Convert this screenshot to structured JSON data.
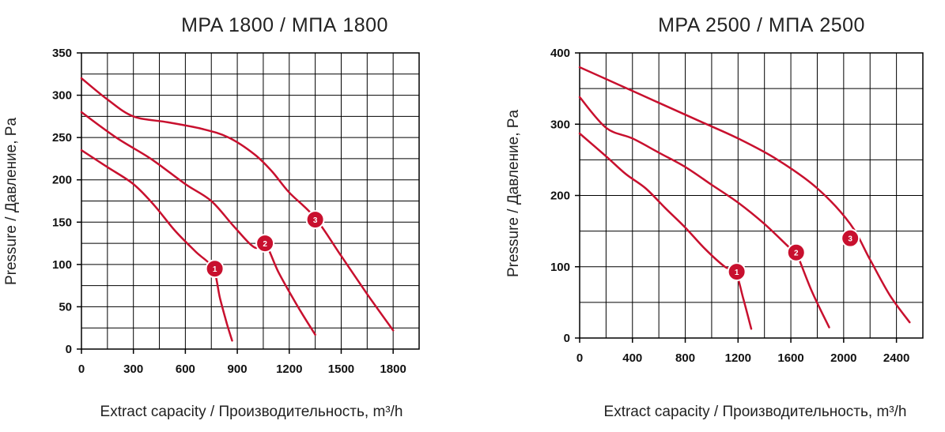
{
  "colors": {
    "curve": "#c8102e",
    "marker": "#c8102e",
    "grid": "#000000"
  },
  "chart_data": [
    {
      "type": "line",
      "title": "MPA 1800 / МПА 1800",
      "xlabel": "Extract capacity / Производительность, m³/h",
      "ylabel": "Pressure / Давление, Pa",
      "xlim": [
        0,
        1950
      ],
      "ylim": [
        0,
        350
      ],
      "x_ticks": [
        0,
        300,
        600,
        900,
        1200,
        1500,
        1800
      ],
      "y_ticks": [
        0,
        50,
        100,
        150,
        200,
        250,
        300,
        350
      ],
      "x_tick_labels": [
        "0",
        "300",
        "600",
        "900",
        "1200",
        "1500",
        "1800"
      ],
      "y_tick_labels": [
        "0",
        "50",
        "100",
        "150",
        "200",
        "250",
        "300",
        "350"
      ],
      "x_grid_step": 150,
      "y_grid_step": 25,
      "series": [
        {
          "name": "1",
          "points": [
            [
              0,
              235
            ],
            [
              150,
              215
            ],
            [
              300,
              195
            ],
            [
              420,
              170
            ],
            [
              540,
              140
            ],
            [
              660,
              115
            ],
            [
              760,
              95
            ],
            [
              800,
              60
            ],
            [
              840,
              30
            ],
            [
              870,
              10
            ]
          ],
          "marker": [
            770,
            95
          ]
        },
        {
          "name": "2",
          "points": [
            [
              0,
              280
            ],
            [
              200,
              250
            ],
            [
              400,
              225
            ],
            [
              600,
              195
            ],
            [
              750,
              175
            ],
            [
              880,
              145
            ],
            [
              1000,
              120
            ],
            [
              1060,
              125
            ],
            [
              1140,
              90
            ],
            [
              1250,
              50
            ],
            [
              1350,
              17
            ]
          ],
          "marker": [
            1060,
            125
          ]
        },
        {
          "name": "3",
          "points": [
            [
              0,
              320
            ],
            [
              150,
              295
            ],
            [
              300,
              275
            ],
            [
              500,
              268
            ],
            [
              700,
              260
            ],
            [
              850,
              250
            ],
            [
              1000,
              230
            ],
            [
              1100,
              210
            ],
            [
              1200,
              185
            ],
            [
              1350,
              155
            ],
            [
              1500,
              110
            ],
            [
              1650,
              65
            ],
            [
              1800,
              22
            ]
          ],
          "marker": [
            1350,
            153
          ]
        }
      ]
    },
    {
      "type": "line",
      "title": "MPA 2500 / МПА 2500",
      "xlabel": "Extract capacity / Производительность, m³/h",
      "ylabel": "Pressure / Давление, Pa",
      "xlim": [
        0,
        2600
      ],
      "ylim": [
        0,
        400
      ],
      "x_ticks": [
        0,
        400,
        800,
        1200,
        1600,
        2000,
        2400
      ],
      "y_ticks": [
        0,
        100,
        200,
        300,
        400
      ],
      "x_tick_labels": [
        "0",
        "400",
        "800",
        "1200",
        "1600",
        "2000",
        "2400"
      ],
      "y_tick_labels": [
        "0",
        "100",
        "200",
        "300",
        "400"
      ],
      "x_grid_step": 200,
      "y_grid_step": 50,
      "series": [
        {
          "name": "1",
          "points": [
            [
              0,
              287
            ],
            [
              200,
              255
            ],
            [
              350,
              230
            ],
            [
              500,
              210
            ],
            [
              650,
              182
            ],
            [
              800,
              155
            ],
            [
              950,
              125
            ],
            [
              1100,
              100
            ],
            [
              1180,
              93
            ],
            [
              1240,
              55
            ],
            [
              1300,
              13
            ]
          ],
          "marker": [
            1190,
            93
          ]
        },
        {
          "name": "2",
          "points": [
            [
              0,
              338
            ],
            [
              200,
              295
            ],
            [
              400,
              280
            ],
            [
              600,
              260
            ],
            [
              800,
              240
            ],
            [
              1000,
              215
            ],
            [
              1200,
              190
            ],
            [
              1400,
              160
            ],
            [
              1600,
              125
            ],
            [
              1640,
              120
            ],
            [
              1760,
              65
            ],
            [
              1890,
              15
            ]
          ],
          "marker": [
            1640,
            120
          ]
        },
        {
          "name": "3",
          "points": [
            [
              0,
              380
            ],
            [
              300,
              355
            ],
            [
              600,
              330
            ],
            [
              900,
              305
            ],
            [
              1200,
              280
            ],
            [
              1500,
              250
            ],
            [
              1800,
              210
            ],
            [
              2050,
              160
            ],
            [
              2200,
              110
            ],
            [
              2350,
              60
            ],
            [
              2500,
              22
            ]
          ],
          "marker": [
            2050,
            140
          ]
        }
      ]
    }
  ]
}
